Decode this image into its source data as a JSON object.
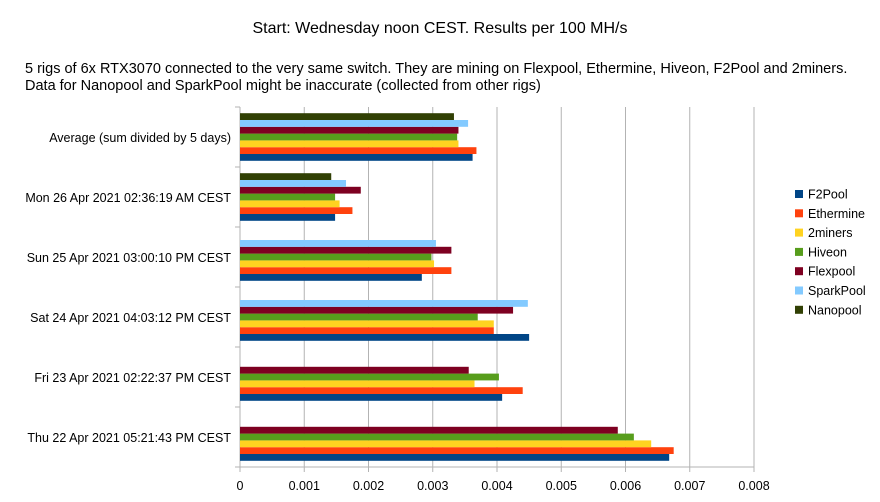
{
  "title": "Start: Wednesday noon CEST. Results per 100 MH/s",
  "subtitle_lines": [
    "5 rigs of 6x RTX3070 connected to the very same switch. They are mining on Flexpool, Ethermine, Hiveon, F2Pool and 2miners.",
    "Data for Nanopool and SparkPool might be inaccurate (collected from other rigs)"
  ],
  "chart_data": {
    "type": "bar",
    "orientation": "horizontal",
    "categories": [
      "Average (sum divided by 5 days)",
      "Mon 26 Apr 2021 02:36:19 AM CEST",
      "Sun 25 Apr 2021 03:00:10 PM CEST",
      "Sat 24 Apr 2021 04:03:12 PM CEST",
      "Fri 23 Apr 2021 02:22:37 PM CEST",
      "Thu 22 Apr 2021 05:21:43 PM CEST"
    ],
    "series": [
      {
        "name": "F2Pool",
        "color": "#004586",
        "values": [
          0.00362,
          0.00148,
          0.00283,
          0.0045,
          0.00408,
          0.00668
        ]
      },
      {
        "name": "Ethermine",
        "color": "#ff420e",
        "values": [
          0.00368,
          0.00175,
          0.00329,
          0.00395,
          0.0044,
          0.00675
        ]
      },
      {
        "name": "2miners",
        "color": "#ffd320",
        "values": [
          0.0034,
          0.00155,
          0.00302,
          0.00395,
          0.00365,
          0.0064
        ]
      },
      {
        "name": "Hiveon",
        "color": "#579d1c",
        "values": [
          0.00338,
          0.00148,
          0.00298,
          0.0037,
          0.00403,
          0.00613
        ]
      },
      {
        "name": "Flexpool",
        "color": "#7e0021",
        "values": [
          0.0034,
          0.00188,
          0.00329,
          0.00425,
          0.00356,
          0.00588
        ]
      },
      {
        "name": "SparkPool",
        "color": "#83caff",
        "values": [
          0.00355,
          0.00165,
          0.00305,
          0.00448,
          null,
          null
        ]
      },
      {
        "name": "Nanopool",
        "color": "#314004",
        "values": [
          0.00333,
          0.00142,
          null,
          null,
          null,
          null
        ]
      }
    ],
    "xlim": [
      0,
      0.008
    ],
    "xticks": [
      "0",
      "0.001",
      "0.002",
      "0.003",
      "0.004",
      "0.005",
      "0.006",
      "0.007",
      "0.008"
    ],
    "grid": "vertical",
    "legend_position": "right"
  }
}
